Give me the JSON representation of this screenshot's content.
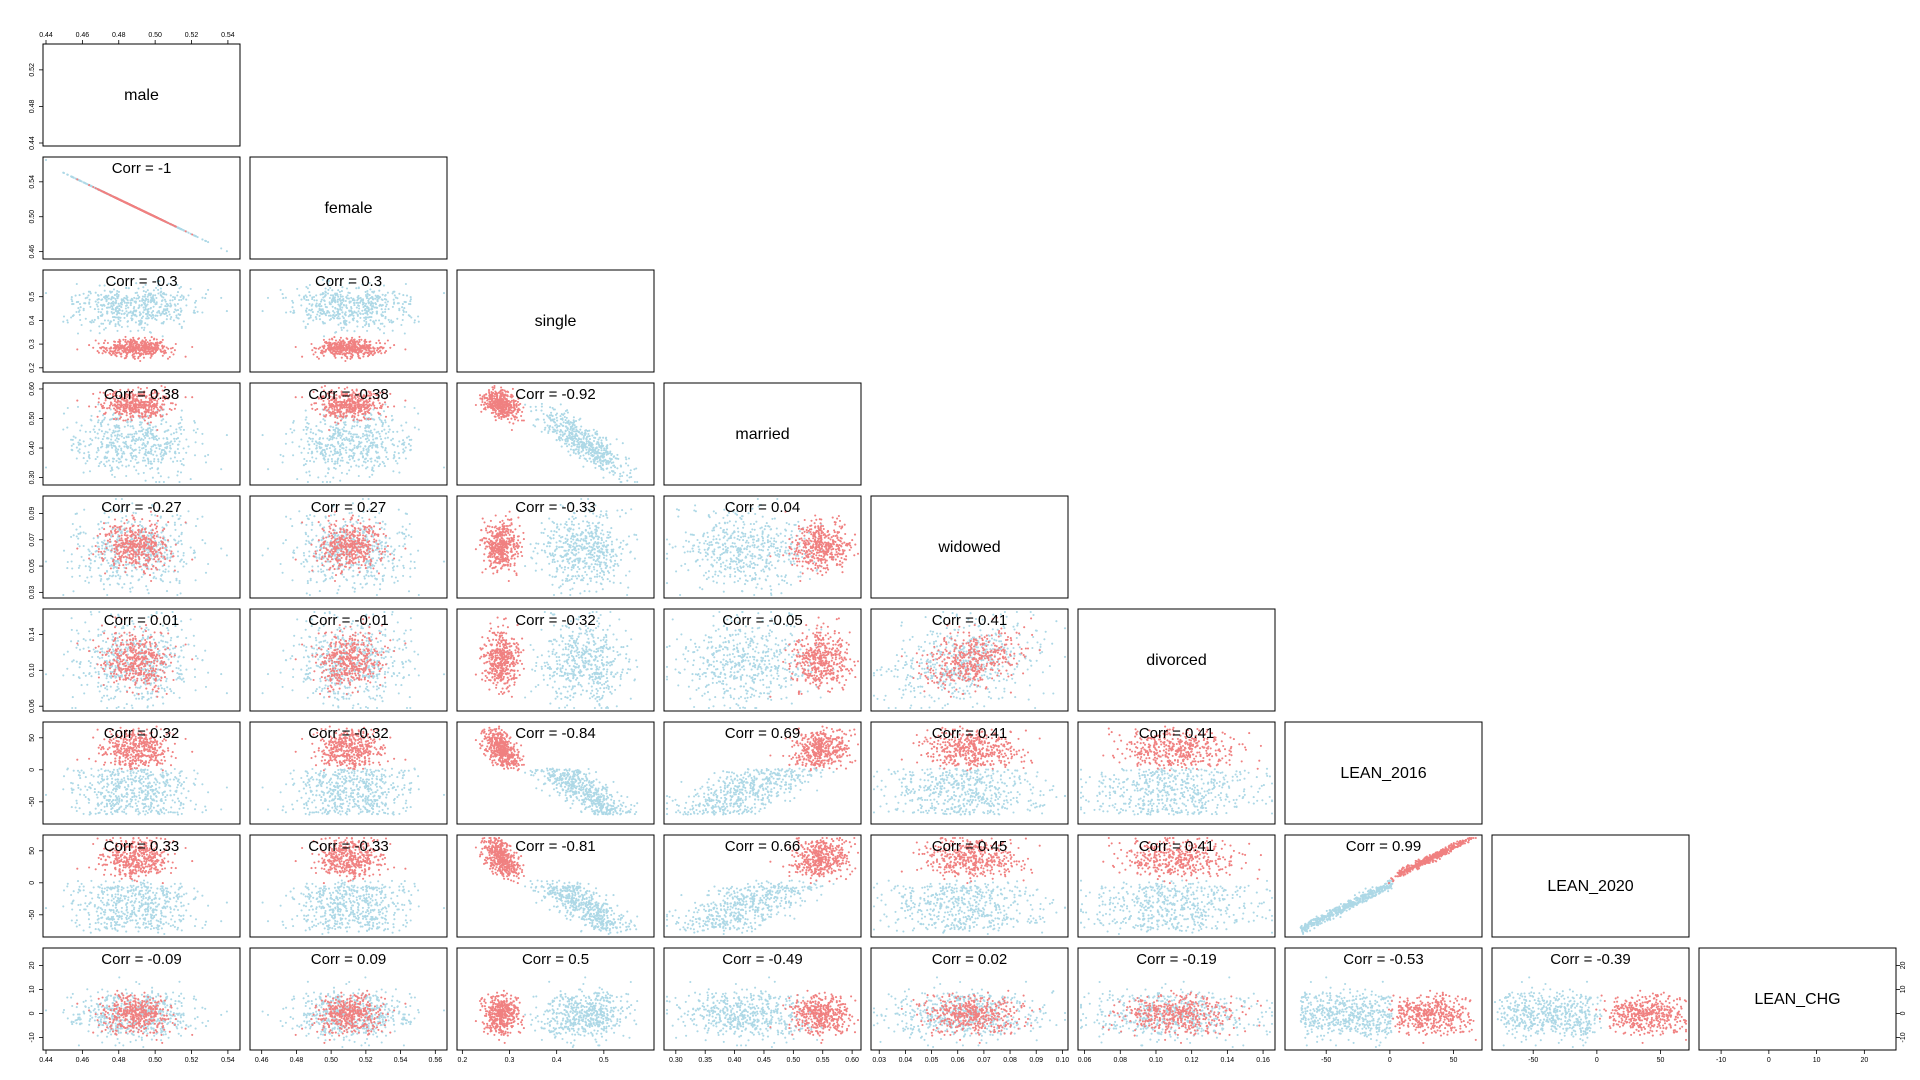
{
  "chart_data": {
    "type": "scatter-matrix",
    "variables": [
      "male",
      "female",
      "single",
      "married",
      "widowed",
      "divorced",
      "LEAN_2016",
      "LEAN_2020",
      "LEAN_CHG"
    ],
    "groups": [
      {
        "color": "#ADD8E6"
      },
      {
        "color": "#F08080"
      }
    ],
    "axes": {
      "male": {
        "range": [
          0.44,
          0.545
        ],
        "ticks": [
          "0.44",
          "0.46",
          "0.48",
          "0.50",
          "0.52",
          "0.54"
        ]
      },
      "female": {
        "range": [
          0.455,
          0.565
        ],
        "ticks": [
          "0.46",
          "0.48",
          "0.50",
          "0.52",
          "0.54",
          "0.56"
        ]
      },
      "single": {
        "range": [
          0.195,
          0.6
        ],
        "ticks": [
          "0.2",
          "0.3",
          "0.4",
          "0.5"
        ]
      },
      "married": {
        "range": [
          0.285,
          0.61
        ],
        "ticks": [
          "0.30",
          "0.35",
          "0.40",
          "0.45",
          "0.50",
          "0.55",
          "0.60"
        ]
      },
      "widowed": {
        "range": [
          0.028,
          0.101
        ],
        "ticks": [
          "0.03",
          "0.04",
          "0.05",
          "0.06",
          "0.07",
          "0.08",
          "0.09",
          "0.10"
        ]
      },
      "divorced": {
        "range": [
          0.058,
          0.165
        ],
        "ticks": [
          "0.06",
          "0.08",
          "0.10",
          "0.12",
          "0.14",
          "0.16"
        ]
      },
      "LEAN_2016": {
        "range": [
          -80,
          70
        ],
        "ticks": [
          "-50",
          "0",
          "50"
        ]
      },
      "LEAN_2020": {
        "range": [
          -80,
          70
        ],
        "ticks": [
          "-50",
          "0",
          "50"
        ]
      },
      "LEAN_CHG": {
        "range": [
          -14,
          26
        ],
        "ticks": [
          "-10",
          "0",
          "10",
          "20"
        ]
      }
    },
    "left_axis_ticks": {
      "male": [
        "0.44",
        "0.48",
        "0.52"
      ],
      "female": [
        "0.46",
        "0.50",
        "0.54"
      ],
      "single": [
        "0.2",
        "0.3",
        "0.4",
        "0.5"
      ],
      "married": [
        "0.30",
        "0.40",
        "0.50",
        "0.60"
      ],
      "widowed": [
        "0.03",
        "0.05",
        "0.07",
        "0.09"
      ],
      "divorced": [
        "0.06",
        "0.10",
        "0.14"
      ],
      "LEAN_2016": [
        "-50",
        "0",
        "50"
      ],
      "LEAN_2020": [
        "-50",
        "0",
        "50"
      ],
      "LEAN_CHG": [
        "-10",
        "0",
        "10",
        "20"
      ]
    },
    "right_axis_ticks": {
      "LEAN_CHG": [
        "-10",
        "0",
        "10",
        "20"
      ]
    },
    "correlations": [
      {
        "row": "female",
        "col": "male",
        "label": "Corr = -1"
      },
      {
        "row": "single",
        "col": "male",
        "label": "Corr = -0.3"
      },
      {
        "row": "single",
        "col": "female",
        "label": "Corr = 0.3"
      },
      {
        "row": "married",
        "col": "male",
        "label": "Corr = 0.38"
      },
      {
        "row": "married",
        "col": "female",
        "label": "Corr = -0.38"
      },
      {
        "row": "married",
        "col": "single",
        "label": "Corr = -0.92"
      },
      {
        "row": "widowed",
        "col": "male",
        "label": "Corr = -0.27"
      },
      {
        "row": "widowed",
        "col": "female",
        "label": "Corr = 0.27"
      },
      {
        "row": "widowed",
        "col": "single",
        "label": "Corr = -0.33"
      },
      {
        "row": "widowed",
        "col": "married",
        "label": "Corr = 0.04"
      },
      {
        "row": "divorced",
        "col": "male",
        "label": "Corr = 0.01"
      },
      {
        "row": "divorced",
        "col": "female",
        "label": "Corr = -0.01"
      },
      {
        "row": "divorced",
        "col": "single",
        "label": "Corr = -0.32"
      },
      {
        "row": "divorced",
        "col": "married",
        "label": "Corr = -0.05"
      },
      {
        "row": "divorced",
        "col": "widowed",
        "label": "Corr = 0.41"
      },
      {
        "row": "LEAN_2016",
        "col": "male",
        "label": "Corr = 0.32"
      },
      {
        "row": "LEAN_2016",
        "col": "female",
        "label": "Corr = -0.32"
      },
      {
        "row": "LEAN_2016",
        "col": "single",
        "label": "Corr = -0.84"
      },
      {
        "row": "LEAN_2016",
        "col": "married",
        "label": "Corr = 0.69"
      },
      {
        "row": "LEAN_2016",
        "col": "widowed",
        "label": "Corr = 0.41"
      },
      {
        "row": "LEAN_2016",
        "col": "divorced",
        "label": "Corr = 0.41"
      },
      {
        "row": "LEAN_2020",
        "col": "male",
        "label": "Corr = 0.33"
      },
      {
        "row": "LEAN_2020",
        "col": "female",
        "label": "Corr = -0.33"
      },
      {
        "row": "LEAN_2020",
        "col": "single",
        "label": "Corr = -0.81"
      },
      {
        "row": "LEAN_2020",
        "col": "married",
        "label": "Corr = 0.66"
      },
      {
        "row": "LEAN_2020",
        "col": "widowed",
        "label": "Corr = 0.45"
      },
      {
        "row": "LEAN_2020",
        "col": "divorced",
        "label": "Corr = 0.41"
      },
      {
        "row": "LEAN_2020",
        "col": "LEAN_2016",
        "label": "Corr = 0.99"
      },
      {
        "row": "LEAN_CHG",
        "col": "male",
        "label": "Corr = -0.09"
      },
      {
        "row": "LEAN_CHG",
        "col": "female",
        "label": "Corr = 0.09"
      },
      {
        "row": "LEAN_CHG",
        "col": "single",
        "label": "Corr = 0.5"
      },
      {
        "row": "LEAN_CHG",
        "col": "married",
        "label": "Corr = -0.49"
      },
      {
        "row": "LEAN_CHG",
        "col": "widowed",
        "label": "Corr = 0.02"
      },
      {
        "row": "LEAN_CHG",
        "col": "divorced",
        "label": "Corr = -0.19"
      },
      {
        "row": "LEAN_CHG",
        "col": "LEAN_2016",
        "label": "Corr = -0.53"
      },
      {
        "row": "LEAN_CHG",
        "col": "LEAN_2020",
        "label": "Corr = -0.39"
      }
    ]
  }
}
